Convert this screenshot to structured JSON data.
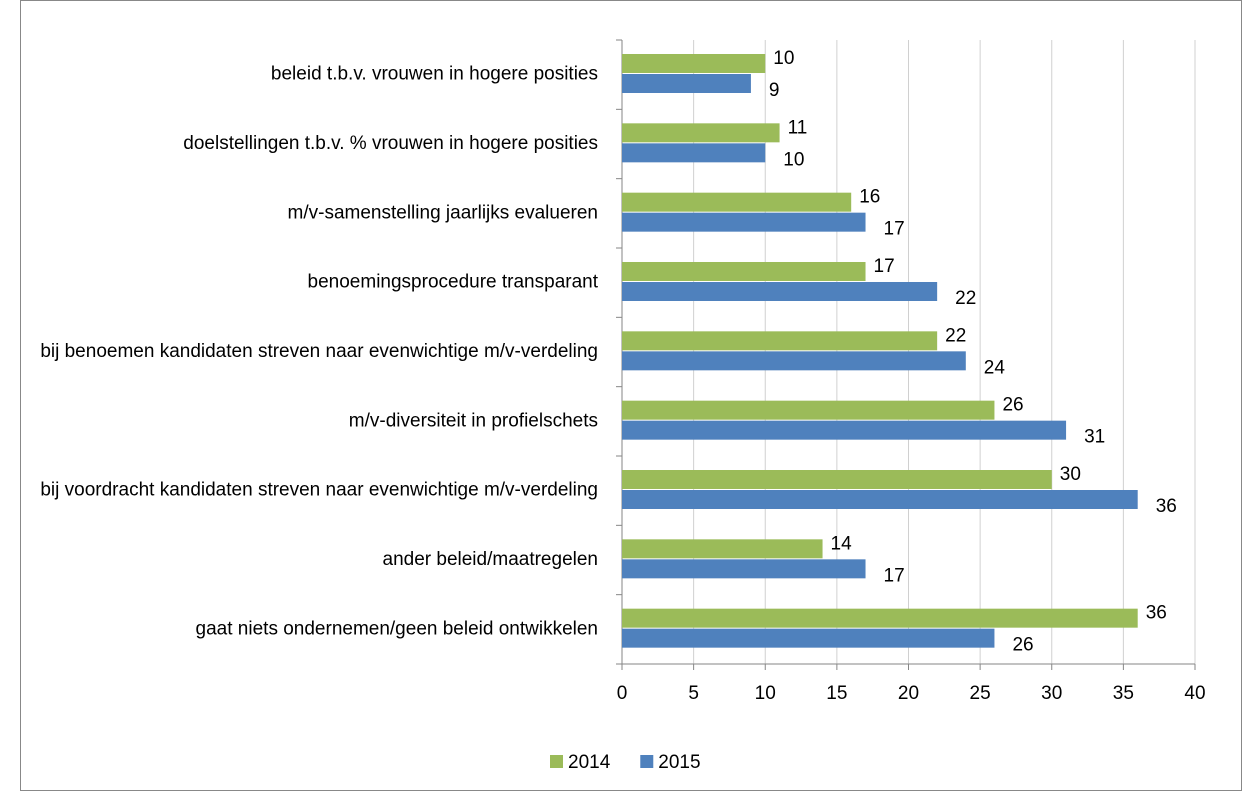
{
  "chart_data": {
    "type": "bar",
    "orientation": "horizontal",
    "categories": [
      "beleid t.b.v. vrouwen in hogere posities",
      "doelstellingen t.b.v. % vrouwen in hogere posities",
      "m/v-samenstelling jaarlijks evalueren",
      "benoemingsprocedure transparant",
      "bij benoemen kandidaten streven naar evenwichtige m/v-verdeling",
      "m/v-diversiteit in profielschets",
      "bij voordracht kandidaten streven naar evenwichtige m/v-verdeling",
      "ander beleid/maatregelen",
      "gaat niets ondernemen/geen beleid ontwikkelen"
    ],
    "series": [
      {
        "name": "2014",
        "color": "#9bbb59",
        "values": [
          10,
          11,
          16,
          17,
          22,
          26,
          30,
          14,
          36
        ]
      },
      {
        "name": "2015",
        "color": "#4f81bd",
        "values": [
          9,
          10,
          17,
          22,
          24,
          31,
          36,
          17,
          26
        ]
      }
    ],
    "xlim": [
      0,
      40
    ],
    "xticks": [
      0,
      5,
      10,
      15,
      20,
      25,
      30,
      35,
      40
    ],
    "grid": true,
    "legend": "bottom"
  }
}
